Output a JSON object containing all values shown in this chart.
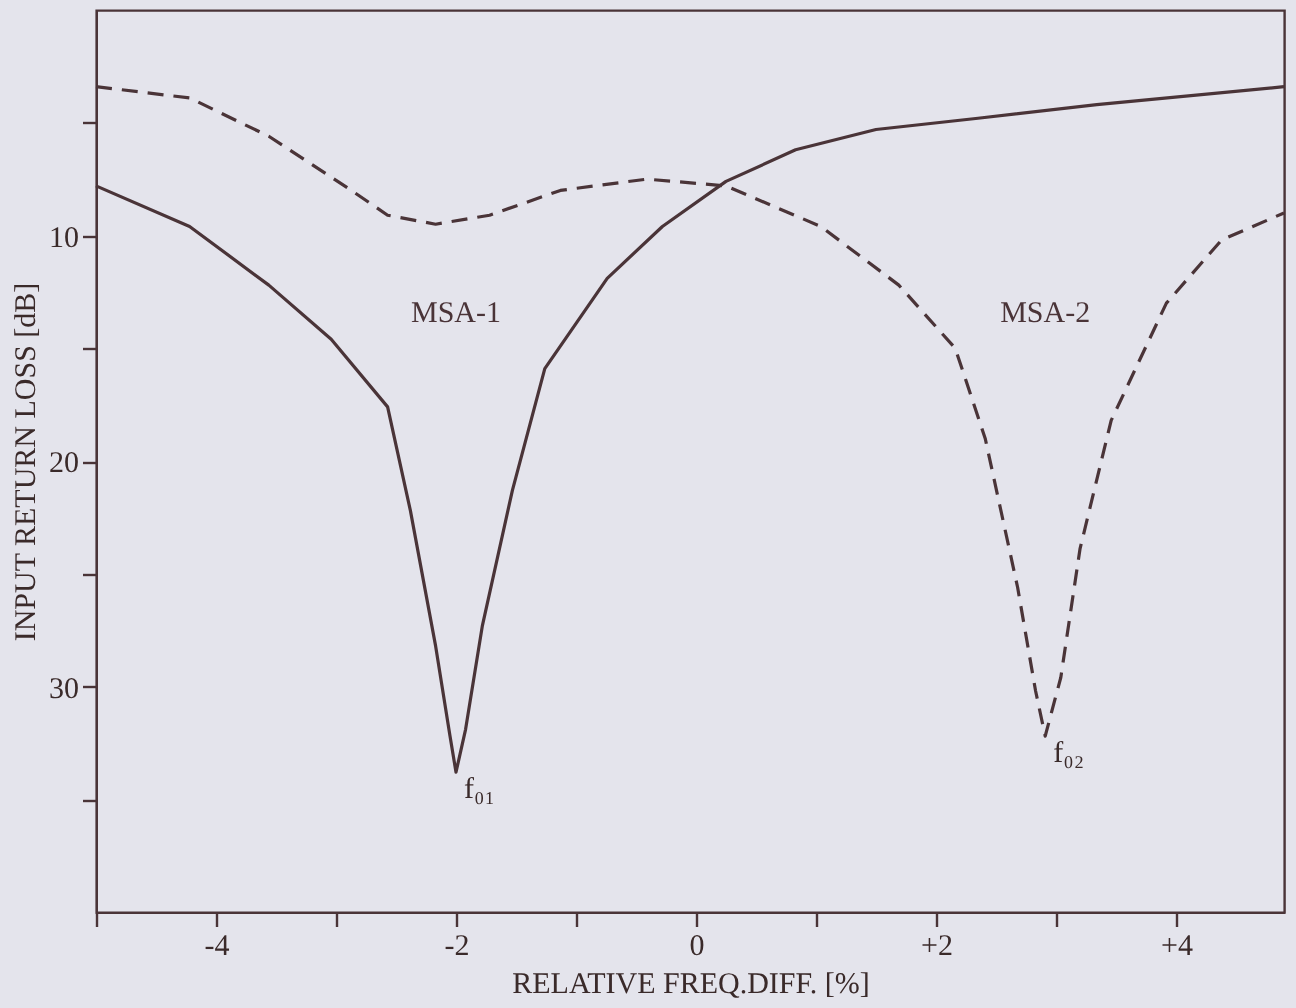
{
  "chart_data": {
    "type": "line",
    "xlabel": "RELATIVE FREQ.DIFF. [%]",
    "ylabel": "INPUT RETURN LOSS [dB]",
    "xlim": [
      -5.0,
      4.9
    ],
    "ylim": [
      40,
      0
    ],
    "xticks": [
      {
        "value": -5,
        "label": null
      },
      -4,
      {
        "value": -3,
        "label": null
      },
      -2,
      {
        "value": -1,
        "label": null
      },
      0,
      {
        "value": 1,
        "label": null
      },
      {
        "value": 2,
        "label": "+2"
      },
      {
        "value": 3,
        "label": null
      },
      {
        "value": 4,
        "label": "+4"
      }
    ],
    "yticks": [
      {
        "value": 5,
        "label": null
      },
      10,
      {
        "value": 15,
        "label": null
      },
      20,
      {
        "value": 25,
        "label": null
      },
      30,
      {
        "value": 35,
        "label": null
      }
    ],
    "grid": false,
    "legend": false,
    "marker": "none",
    "series": [
      {
        "name": "MSA-1",
        "color": "#4a3438",
        "line_style": "solid",
        "x": [
          -5.0,
          -4.22,
          -3.56,
          -3.04,
          -2.57,
          -2.38,
          -2.17,
          -2.05,
          -2.0,
          -1.92,
          -1.78,
          -1.53,
          -1.26,
          -0.74,
          -0.28,
          0.25,
          0.83,
          1.5,
          2.35,
          3.34,
          4.9
        ],
        "values": [
          7.8,
          9.6,
          12.2,
          14.6,
          17.6,
          22.2,
          28.2,
          32.2,
          33.8,
          31.9,
          27.3,
          21.3,
          15.9,
          11.9,
          9.6,
          7.6,
          6.2,
          5.3,
          4.8,
          4.2,
          3.4
        ]
      },
      {
        "name": "MSA-2",
        "color": "#4a3438",
        "line_style": "dashed",
        "x": [
          -5.0,
          -4.22,
          -3.56,
          -2.9,
          -2.57,
          -2.17,
          -1.72,
          -1.13,
          -0.41,
          0.25,
          1.04,
          1.69,
          2.16,
          2.41,
          2.68,
          2.83,
          2.91,
          3.04,
          3.2,
          3.46,
          3.92,
          4.38,
          4.9
        ],
        "values": [
          3.4,
          3.9,
          5.6,
          7.9,
          9.1,
          9.5,
          9.1,
          8.0,
          7.5,
          7.8,
          9.6,
          12.2,
          15.0,
          19.0,
          25.6,
          30.2,
          32.2,
          29.6,
          23.9,
          18.2,
          13.0,
          10.2,
          9.0
        ]
      }
    ],
    "annotations": [
      {
        "text": "f₀₁",
        "x": -2.0,
        "y": 33.8
      },
      {
        "text": "f₀₂",
        "x": 2.91,
        "y": 32.2
      }
    ]
  }
}
